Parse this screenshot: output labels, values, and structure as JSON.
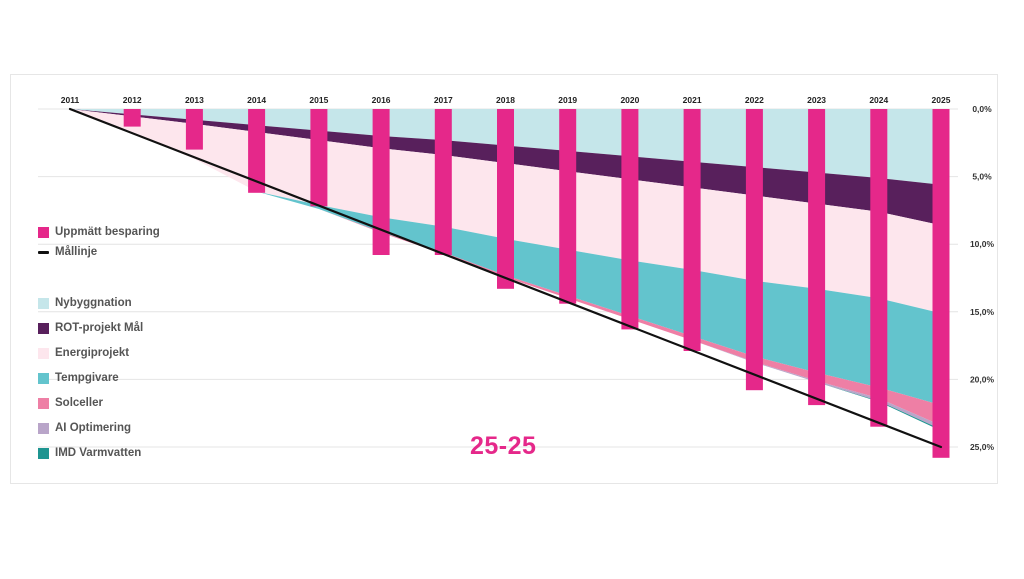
{
  "chart_data": {
    "type": "area",
    "x": [
      "2011",
      "2012",
      "2013",
      "2014",
      "2015",
      "2016",
      "2017",
      "2018",
      "2019",
      "2020",
      "2021",
      "2022",
      "2023",
      "2024",
      "2025"
    ],
    "y_ticks": [
      "0,0%",
      "5,0%",
      "10,0%",
      "15,0%",
      "20,0%",
      "25,0%"
    ],
    "ylim": [
      0,
      25
    ],
    "y_direction": "down",
    "grid": true,
    "stack_series": [
      {
        "name": "Nybyggnation",
        "color": "#c5e6ea",
        "values": [
          0,
          0.4,
          0.8,
          1.2,
          1.6,
          2.0,
          2.3,
          2.7,
          3.1,
          3.5,
          3.9,
          4.3,
          4.7,
          5.1,
          5.6
        ]
      },
      {
        "name": "ROT-projekt Mål",
        "color": "#58205c",
        "values": [
          0,
          0.15,
          0.3,
          0.5,
          0.7,
          0.9,
          1.1,
          1.3,
          1.5,
          1.7,
          1.9,
          2.1,
          2.3,
          2.5,
          3.0
        ]
      },
      {
        "name": "Energiprojekt",
        "color": "#fde6ed",
        "values": [
          0,
          1.2,
          2.6,
          4.4,
          4.8,
          5.1,
          5.3,
          5.6,
          5.8,
          6.0,
          6.1,
          6.3,
          6.3,
          6.4,
          6.5
        ]
      },
      {
        "name": "Tempgivare",
        "color": "#63c4cd",
        "values": [
          0,
          0,
          0,
          0,
          0.3,
          1.1,
          1.9,
          2.7,
          3.4,
          4.1,
          4.9,
          5.6,
          6.2,
          6.6,
          6.8
        ]
      },
      {
        "name": "Solceller",
        "color": "#ee7fa5",
        "values": [
          0,
          0,
          0,
          0,
          0,
          0.05,
          0.1,
          0.15,
          0.2,
          0.25,
          0.3,
          0.4,
          0.6,
          0.8,
          1.5
        ]
      },
      {
        "name": "AI Optimering",
        "color": "#b9a5c9",
        "values": [
          0,
          0,
          0,
          0,
          0,
          0,
          0,
          0,
          0,
          0,
          0,
          0.05,
          0.1,
          0.2,
          0.3
        ]
      },
      {
        "name": "IMD Varmvatten",
        "color": "#1e9591",
        "values": [
          0,
          0,
          0,
          0,
          0,
          0,
          0,
          0,
          0,
          0,
          0,
          0,
          0,
          0.05,
          0.1
        ]
      }
    ],
    "bars": {
      "name": "Uppmätt besparing",
      "color": "#e5288a",
      "values": [
        0,
        1.3,
        3.0,
        6.2,
        7.2,
        10.8,
        10.8,
        13.3,
        14.4,
        16.3,
        17.9,
        20.8,
        21.9,
        23.5,
        25.8
      ]
    },
    "target_line": {
      "name": "Mållinje",
      "color": "#111111",
      "from": [
        0,
        0
      ],
      "to": [
        14,
        25
      ]
    },
    "annotation": "25-25",
    "legend": [
      "Uppmätt besparing",
      "Mållinje",
      "Nybyggnation",
      "ROT-projekt Mål",
      "Energiprojekt",
      "Tempgivare",
      "Solceller",
      "AI Optimering",
      "IMD Varmvatten"
    ],
    "legend_position": "left"
  },
  "legend": {
    "bars_label": "Uppmätt besparing",
    "line_label": "Mållinje",
    "items": [
      {
        "label": "Nybyggnation",
        "color": "#c5e6ea"
      },
      {
        "label": "ROT-projekt Mål",
        "color": "#58205c"
      },
      {
        "label": "Energiprojekt",
        "color": "#fde6ed"
      },
      {
        "label": "Tempgivare",
        "color": "#63c4cd"
      },
      {
        "label": "Solceller",
        "color": "#ee7fa5"
      },
      {
        "label": "AI Optimering",
        "color": "#b9a5c9"
      },
      {
        "label": "IMD Varmvatten",
        "color": "#1e9591"
      }
    ]
  },
  "colors": {
    "accent": "#e5288a",
    "line": "#111111"
  }
}
